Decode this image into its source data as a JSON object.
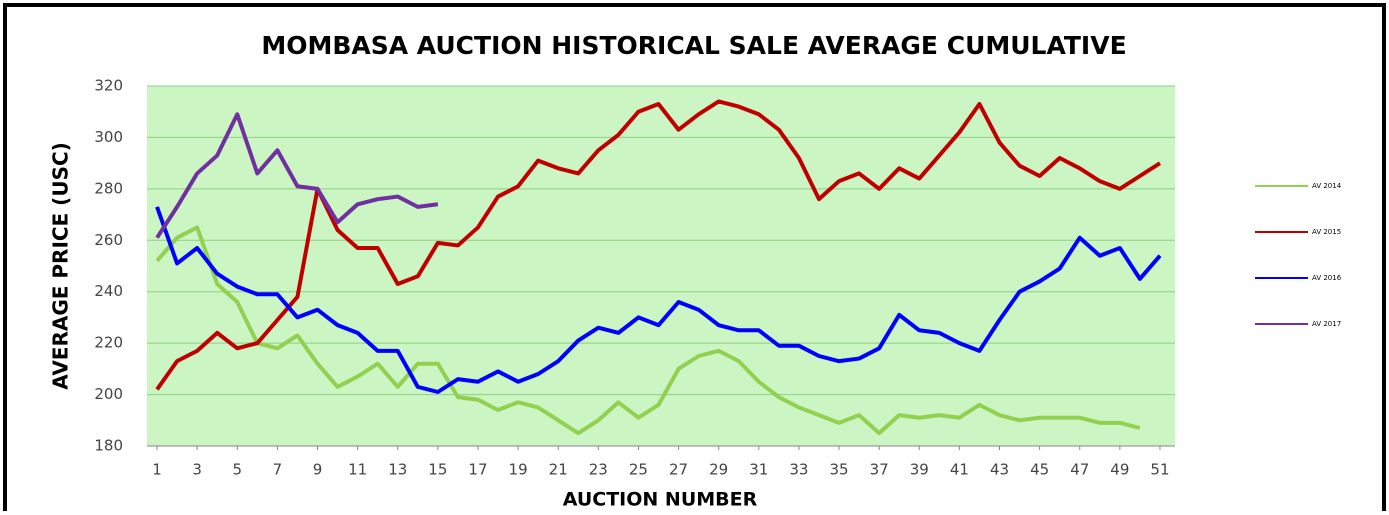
{
  "chart_data": {
    "type": "line",
    "title": "MOMBASA AUCTION  HISTORICAL SALE AVERAGE CUMULATIVE",
    "x_label": "AUCTION NUMBER",
    "y_label": "AVERAGE PRICE (USC)",
    "x": [
      1,
      2,
      3,
      4,
      5,
      6,
      7,
      8,
      9,
      10,
      11,
      12,
      13,
      14,
      15,
      16,
      17,
      18,
      19,
      20,
      21,
      22,
      23,
      24,
      25,
      26,
      27,
      28,
      29,
      30,
      31,
      32,
      33,
      34,
      35,
      36,
      37,
      38,
      39,
      40,
      41,
      42,
      43,
      44,
      45,
      46,
      47,
      48,
      49,
      50,
      51
    ],
    "xlim": [
      0.5,
      51.5
    ],
    "xticks": [
      1,
      3,
      5,
      7,
      9,
      11,
      13,
      15,
      17,
      19,
      21,
      23,
      25,
      27,
      29,
      31,
      33,
      35,
      37,
      39,
      41,
      43,
      45,
      47,
      49,
      51
    ],
    "ylim": [
      180,
      320
    ],
    "yticks": [
      180,
      200,
      220,
      240,
      260,
      280,
      300,
      320
    ],
    "grid": true,
    "legend": "right",
    "series": [
      {
        "name": "AV 2014",
        "color": "#92d050",
        "values": [
          252,
          261,
          265,
          243,
          236,
          220,
          218,
          223,
          212,
          203,
          207,
          212,
          203,
          212,
          212,
          199,
          198,
          194,
          197,
          195,
          190,
          185,
          190,
          197,
          191,
          196,
          210,
          215,
          217,
          213,
          205,
          199,
          195,
          192,
          189,
          192,
          185,
          192,
          191,
          192,
          191,
          196,
          192,
          190,
          191,
          191,
          191,
          189,
          189,
          187,
          null
        ]
      },
      {
        "name": "AV 2015",
        "color": "#c00000",
        "values": [
          202,
          213,
          217,
          224,
          218,
          220,
          229,
          238,
          280,
          264,
          257,
          257,
          243,
          246,
          259,
          258,
          265,
          277,
          281,
          291,
          288,
          286,
          295,
          301,
          310,
          313,
          303,
          309,
          314,
          312,
          309,
          303,
          292,
          276,
          283,
          286,
          280,
          288,
          284,
          293,
          302,
          313,
          298,
          289,
          285,
          292,
          288,
          283,
          280,
          285,
          290
        ]
      },
      {
        "name": "AV 2016",
        "color": "#0000ff",
        "values": [
          273,
          251,
          257,
          247,
          242,
          239,
          239,
          230,
          233,
          227,
          224,
          217,
          217,
          203,
          201,
          206,
          205,
          209,
          205,
          208,
          213,
          221,
          226,
          224,
          230,
          227,
          236,
          233,
          227,
          225,
          225,
          219,
          219,
          215,
          213,
          214,
          218,
          231,
          225,
          224,
          220,
          217,
          229,
          240,
          244,
          249,
          261,
          254,
          257,
          245,
          254
        ]
      },
      {
        "name": "AV 2017",
        "color": "#7030a0",
        "values": [
          261,
          273,
          286,
          293,
          309,
          286,
          295,
          281,
          280,
          267,
          274,
          276,
          277,
          273,
          274,
          null,
          null,
          null,
          null,
          null,
          null,
          null,
          null,
          null,
          null,
          null,
          null,
          null,
          null,
          null,
          null,
          null,
          null,
          null,
          null,
          null,
          null,
          null,
          null,
          null,
          null,
          null,
          null,
          null,
          null,
          null,
          null,
          null,
          null,
          null,
          null
        ]
      }
    ]
  }
}
